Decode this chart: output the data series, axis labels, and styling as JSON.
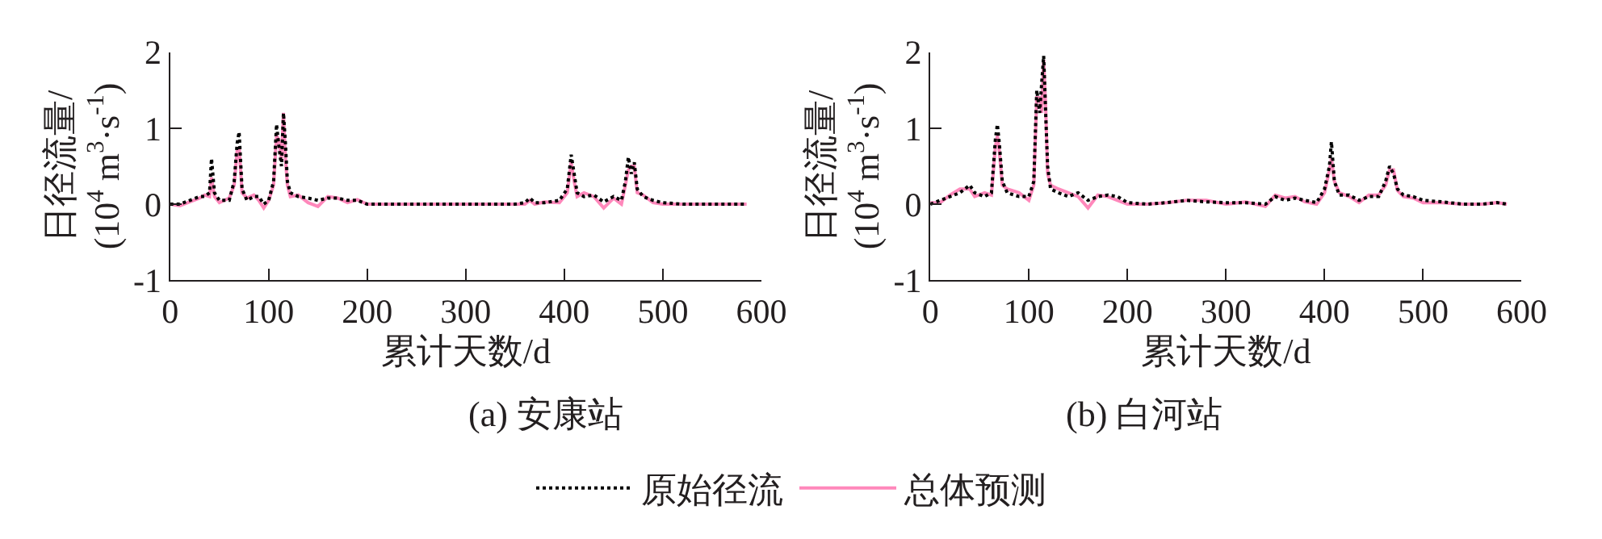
{
  "chart_data": [
    {
      "type": "line",
      "title": "(a) 安康站",
      "xlabel": "累计天数/d",
      "ylabel": "日径流量/\n(10$^{4}$ m$^{3}$·s$^{-1}$)",
      "xlim": [
        0,
        600
      ],
      "xticks": [
        0,
        100,
        200,
        300,
        400,
        500,
        600
      ],
      "ylim": [
        -1,
        2
      ],
      "yticks": [
        -1,
        0,
        1,
        2
      ],
      "legend": "bottom",
      "marker": "none",
      "x": [
        0,
        10,
        20,
        30,
        35,
        40,
        42,
        45,
        50,
        60,
        65,
        68,
        70,
        73,
        78,
        85,
        90,
        95,
        100,
        105,
        108,
        110,
        113,
        115,
        117,
        119,
        122,
        130,
        140,
        150,
        160,
        170,
        180,
        190,
        200,
        220,
        250,
        300,
        330,
        350,
        360,
        365,
        370,
        380,
        395,
        403,
        407,
        410,
        413,
        420,
        430,
        440,
        450,
        458,
        462,
        465,
        468,
        471,
        474,
        480,
        490,
        500,
        520,
        550,
        585
      ],
      "series": [
        {
          "name": "原始径流",
          "color": "#000000",
          "line_style": "dotted",
          "values": [
            0,
            0,
            0.05,
            0.1,
            0.1,
            0.15,
            0.6,
            0.15,
            0.05,
            0.05,
            0.3,
            0.8,
            0.95,
            0.2,
            0.05,
            0.1,
            0.1,
            0,
            0.05,
            0.3,
            1.05,
            0.8,
            0.5,
            1.2,
            0.8,
            0.3,
            0.15,
            0.1,
            0.08,
            0.05,
            0.08,
            0.08,
            0.05,
            0.05,
            0,
            0,
            0,
            0,
            0,
            0,
            0.02,
            0.08,
            0.02,
            0.02,
            0.05,
            0.2,
            0.65,
            0.4,
            0.15,
            0.1,
            0.12,
            0.03,
            0.1,
            0.05,
            0.3,
            0.62,
            0.4,
            0.55,
            0.2,
            0.1,
            0.05,
            0.02,
            0,
            0,
            0
          ]
        },
        {
          "name": "总体预测",
          "color": "#ff88bb",
          "line_style": "solid",
          "values": [
            0,
            -0.02,
            0.03,
            0.08,
            0.12,
            0.1,
            0.35,
            0.1,
            0.02,
            0.08,
            0.25,
            0.7,
            0.75,
            0.15,
            0.08,
            0.12,
            0.05,
            -0.05,
            0.05,
            0.25,
            0.9,
            0.85,
            0.6,
            1.2,
            0.6,
            0.25,
            0.1,
            0.12,
            0.02,
            -0.03,
            0.1,
            0.08,
            0.02,
            0.06,
            0,
            0,
            0,
            0,
            0,
            0,
            0,
            0.05,
            0,
            0.03,
            0.02,
            0.15,
            0.55,
            0.3,
            0.1,
            0.15,
            0.1,
            -0.05,
            0.08,
            0,
            0.25,
            0.45,
            0.5,
            0.5,
            0.15,
            0.12,
            0.02,
            0,
            0,
            0,
            0
          ]
        }
      ]
    },
    {
      "type": "line",
      "title": "(b) 白河站",
      "xlabel": "累计天数/d",
      "ylabel": "日径流量/\n(10$^{4}$ m$^{3}$·s$^{-1}$)",
      "xlim": [
        0,
        600
      ],
      "xticks": [
        0,
        100,
        200,
        300,
        400,
        500,
        600
      ],
      "ylim": [
        -1,
        2
      ],
      "yticks": [
        -1,
        0,
        1,
        2
      ],
      "marker": "none",
      "x": [
        0,
        10,
        20,
        30,
        40,
        45,
        55,
        62,
        66,
        68,
        70,
        73,
        78,
        90,
        100,
        105,
        108,
        111,
        113,
        115,
        117,
        119,
        122,
        130,
        140,
        150,
        160,
        170,
        180,
        190,
        200,
        220,
        240,
        260,
        280,
        300,
        320,
        340,
        350,
        360,
        370,
        380,
        392,
        400,
        405,
        407,
        410,
        415,
        425,
        435,
        445,
        455,
        462,
        466,
        470,
        474,
        480,
        490,
        500,
        520,
        540,
        560,
        575,
        585
      ],
      "series": [
        {
          "color": "#000000",
          "line_style": "dotted",
          "values": [
            0,
            0.05,
            0.1,
            0.15,
            0.25,
            0.15,
            0.1,
            0.15,
            0.85,
            1.05,
            0.8,
            0.3,
            0.15,
            0.1,
            0.1,
            0.3,
            1.5,
            1.2,
            1.6,
            1.95,
            1.2,
            0.5,
            0.2,
            0.15,
            0.1,
            0.15,
            0.05,
            0.1,
            0.12,
            0.1,
            0.02,
            0,
            0.02,
            0.05,
            0.03,
            0.02,
            0.02,
            0,
            0.1,
            0.05,
            0.08,
            0.05,
            0.02,
            0.2,
            0.5,
            0.82,
            0.3,
            0.12,
            0.12,
            0.05,
            0.1,
            0.1,
            0.3,
            0.5,
            0.4,
            0.2,
            0.12,
            0.1,
            0.05,
            0.03,
            0,
            0,
            0.02,
            0
          ]
        },
        {
          "color": "#ff88bb",
          "line_style": "solid",
          "values": [
            0.02,
            0.02,
            0.12,
            0.2,
            0.2,
            0.1,
            0.15,
            0.12,
            0.75,
            0.9,
            0.7,
            0.25,
            0.2,
            0.15,
            0.05,
            0.25,
            1.4,
            1.4,
            1.2,
            1.9,
            1.3,
            0.4,
            0.25,
            0.2,
            0.15,
            0.1,
            -0.05,
            0.12,
            0.1,
            0.05,
            0,
            0,
            0.02,
            0.05,
            0.05,
            0,
            0.03,
            -0.03,
            0.12,
            0.08,
            0.1,
            0.03,
            0,
            0.15,
            0.45,
            0.6,
            0.3,
            0.15,
            0.1,
            0.02,
            0.12,
            0.12,
            0.25,
            0.45,
            0.45,
            0.18,
            0.1,
            0.08,
            0.02,
            0.02,
            0,
            0,
            0.02,
            0
          ]
        }
      ]
    }
  ]
}
